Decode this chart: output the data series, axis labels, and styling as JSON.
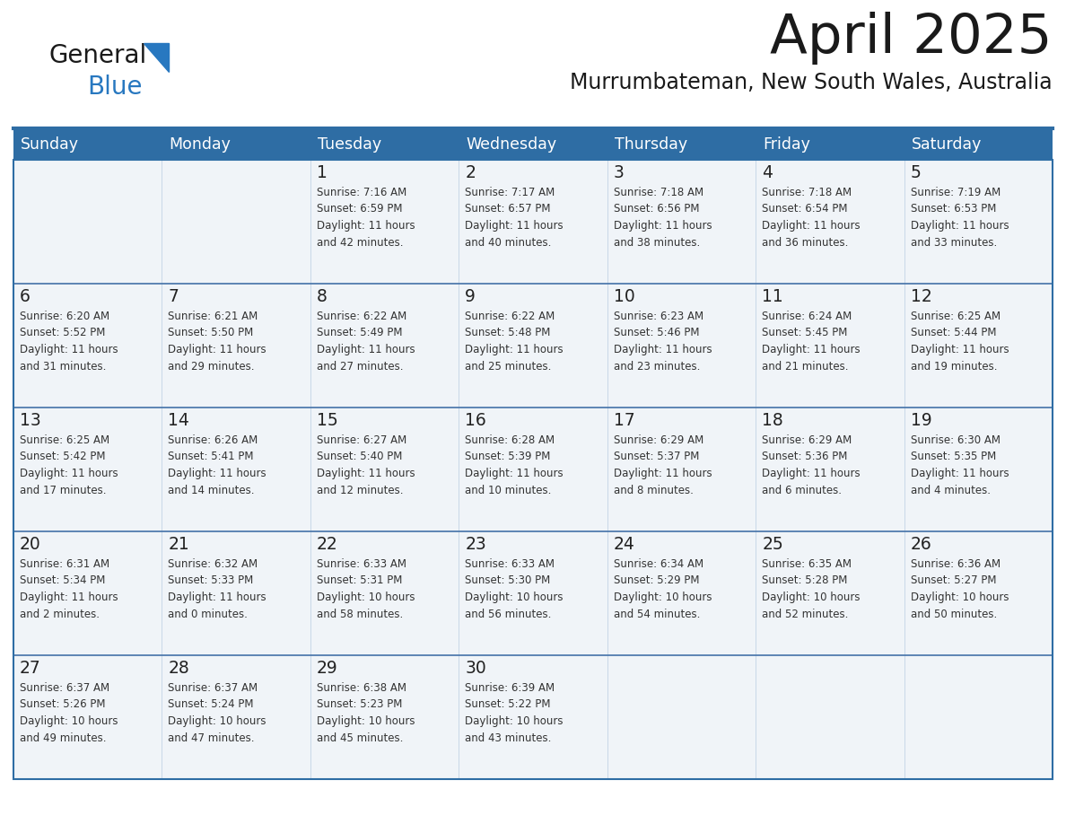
{
  "title": "April 2025",
  "subtitle": "Murrumbateman, New South Wales, Australia",
  "days_of_week": [
    "Sunday",
    "Monday",
    "Tuesday",
    "Wednesday",
    "Thursday",
    "Friday",
    "Saturday"
  ],
  "header_bg": "#2E6DA4",
  "header_text": "#FFFFFF",
  "cell_bg": "#F0F4F8",
  "separator_color": "#2E6DA4",
  "row_separator_color": "#4472A8",
  "text_color": "#333333",
  "title_color": "#1a1a1a",
  "logo_general_color": "#1a1a1a",
  "logo_blue_color": "#2878C0",
  "weeks": [
    [
      {
        "day": null,
        "info": null
      },
      {
        "day": null,
        "info": null
      },
      {
        "day": 1,
        "info": "Sunrise: 7:16 AM\nSunset: 6:59 PM\nDaylight: 11 hours\nand 42 minutes."
      },
      {
        "day": 2,
        "info": "Sunrise: 7:17 AM\nSunset: 6:57 PM\nDaylight: 11 hours\nand 40 minutes."
      },
      {
        "day": 3,
        "info": "Sunrise: 7:18 AM\nSunset: 6:56 PM\nDaylight: 11 hours\nand 38 minutes."
      },
      {
        "day": 4,
        "info": "Sunrise: 7:18 AM\nSunset: 6:54 PM\nDaylight: 11 hours\nand 36 minutes."
      },
      {
        "day": 5,
        "info": "Sunrise: 7:19 AM\nSunset: 6:53 PM\nDaylight: 11 hours\nand 33 minutes."
      }
    ],
    [
      {
        "day": 6,
        "info": "Sunrise: 6:20 AM\nSunset: 5:52 PM\nDaylight: 11 hours\nand 31 minutes."
      },
      {
        "day": 7,
        "info": "Sunrise: 6:21 AM\nSunset: 5:50 PM\nDaylight: 11 hours\nand 29 minutes."
      },
      {
        "day": 8,
        "info": "Sunrise: 6:22 AM\nSunset: 5:49 PM\nDaylight: 11 hours\nand 27 minutes."
      },
      {
        "day": 9,
        "info": "Sunrise: 6:22 AM\nSunset: 5:48 PM\nDaylight: 11 hours\nand 25 minutes."
      },
      {
        "day": 10,
        "info": "Sunrise: 6:23 AM\nSunset: 5:46 PM\nDaylight: 11 hours\nand 23 minutes."
      },
      {
        "day": 11,
        "info": "Sunrise: 6:24 AM\nSunset: 5:45 PM\nDaylight: 11 hours\nand 21 minutes."
      },
      {
        "day": 12,
        "info": "Sunrise: 6:25 AM\nSunset: 5:44 PM\nDaylight: 11 hours\nand 19 minutes."
      }
    ],
    [
      {
        "day": 13,
        "info": "Sunrise: 6:25 AM\nSunset: 5:42 PM\nDaylight: 11 hours\nand 17 minutes."
      },
      {
        "day": 14,
        "info": "Sunrise: 6:26 AM\nSunset: 5:41 PM\nDaylight: 11 hours\nand 14 minutes."
      },
      {
        "day": 15,
        "info": "Sunrise: 6:27 AM\nSunset: 5:40 PM\nDaylight: 11 hours\nand 12 minutes."
      },
      {
        "day": 16,
        "info": "Sunrise: 6:28 AM\nSunset: 5:39 PM\nDaylight: 11 hours\nand 10 minutes."
      },
      {
        "day": 17,
        "info": "Sunrise: 6:29 AM\nSunset: 5:37 PM\nDaylight: 11 hours\nand 8 minutes."
      },
      {
        "day": 18,
        "info": "Sunrise: 6:29 AM\nSunset: 5:36 PM\nDaylight: 11 hours\nand 6 minutes."
      },
      {
        "day": 19,
        "info": "Sunrise: 6:30 AM\nSunset: 5:35 PM\nDaylight: 11 hours\nand 4 minutes."
      }
    ],
    [
      {
        "day": 20,
        "info": "Sunrise: 6:31 AM\nSunset: 5:34 PM\nDaylight: 11 hours\nand 2 minutes."
      },
      {
        "day": 21,
        "info": "Sunrise: 6:32 AM\nSunset: 5:33 PM\nDaylight: 11 hours\nand 0 minutes."
      },
      {
        "day": 22,
        "info": "Sunrise: 6:33 AM\nSunset: 5:31 PM\nDaylight: 10 hours\nand 58 minutes."
      },
      {
        "day": 23,
        "info": "Sunrise: 6:33 AM\nSunset: 5:30 PM\nDaylight: 10 hours\nand 56 minutes."
      },
      {
        "day": 24,
        "info": "Sunrise: 6:34 AM\nSunset: 5:29 PM\nDaylight: 10 hours\nand 54 minutes."
      },
      {
        "day": 25,
        "info": "Sunrise: 6:35 AM\nSunset: 5:28 PM\nDaylight: 10 hours\nand 52 minutes."
      },
      {
        "day": 26,
        "info": "Sunrise: 6:36 AM\nSunset: 5:27 PM\nDaylight: 10 hours\nand 50 minutes."
      }
    ],
    [
      {
        "day": 27,
        "info": "Sunrise: 6:37 AM\nSunset: 5:26 PM\nDaylight: 10 hours\nand 49 minutes."
      },
      {
        "day": 28,
        "info": "Sunrise: 6:37 AM\nSunset: 5:24 PM\nDaylight: 10 hours\nand 47 minutes."
      },
      {
        "day": 29,
        "info": "Sunrise: 6:38 AM\nSunset: 5:23 PM\nDaylight: 10 hours\nand 45 minutes."
      },
      {
        "day": 30,
        "info": "Sunrise: 6:39 AM\nSunset: 5:22 PM\nDaylight: 10 hours\nand 43 minutes."
      },
      {
        "day": null,
        "info": null
      },
      {
        "day": null,
        "info": null
      },
      {
        "day": null,
        "info": null
      }
    ]
  ]
}
